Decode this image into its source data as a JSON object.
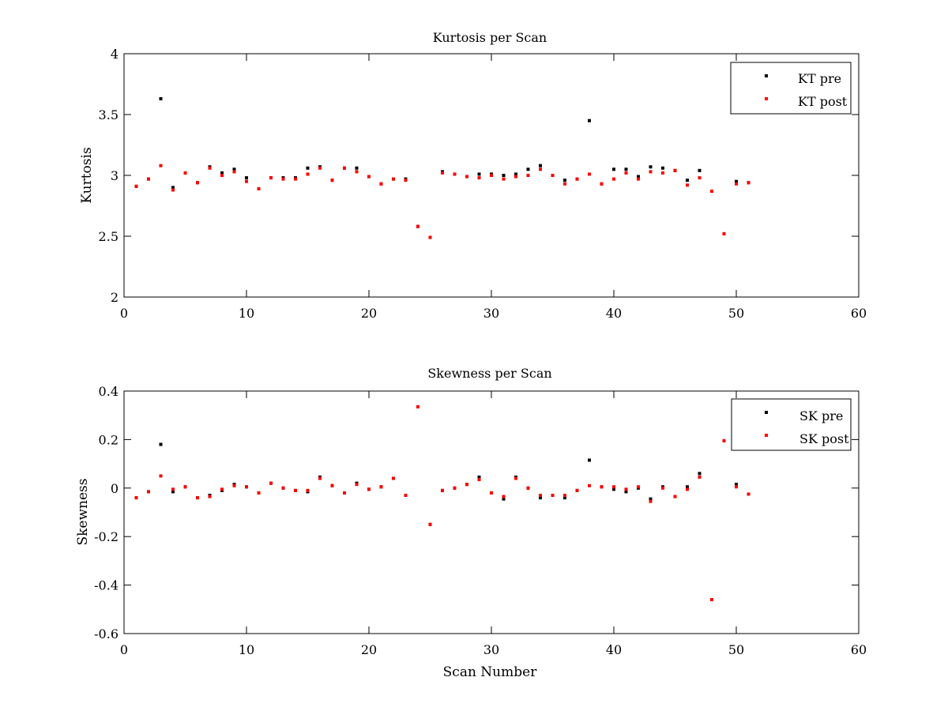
{
  "chart_data": [
    {
      "type": "scatter",
      "title": "Kurtosis per Scan",
      "xlabel": "",
      "ylabel": "Kurtosis",
      "xlim": [
        0,
        60
      ],
      "ylim": [
        2,
        4
      ],
      "xticks": [
        "0",
        "10",
        "20",
        "30",
        "40",
        "50",
        "60"
      ],
      "yticks": [
        "2",
        "2.5",
        "3",
        "3.5",
        "4"
      ],
      "xtick_values": [
        0,
        10,
        20,
        30,
        40,
        50,
        60
      ],
      "ytick_values": [
        2,
        2.5,
        3,
        3.5,
        4
      ],
      "grid": false,
      "legend_position": "top-right",
      "series": [
        {
          "name": "KT pre",
          "color": "#000000",
          "x": [
            1,
            2,
            3,
            4,
            5,
            6,
            7,
            8,
            9,
            10,
            11,
            12,
            13,
            14,
            15,
            16,
            17,
            18,
            19,
            20,
            21,
            22,
            23,
            24,
            25,
            26,
            27,
            28,
            29,
            30,
            31,
            32,
            33,
            34,
            35,
            36,
            37,
            38,
            39,
            40,
            41,
            42,
            43,
            44,
            45,
            46,
            47,
            48,
            49,
            50,
            51
          ],
          "y": [
            2.91,
            2.97,
            3.63,
            2.9,
            3.02,
            2.94,
            3.07,
            3.02,
            3.05,
            2.98,
            2.89,
            2.98,
            2.98,
            2.98,
            3.06,
            3.07,
            2.96,
            3.06,
            3.06,
            2.99,
            2.93,
            2.97,
            2.97,
            2.58,
            2.49,
            3.03,
            3.01,
            2.99,
            3.01,
            3.01,
            3.0,
            3.01,
            3.05,
            3.08,
            3.0,
            2.96,
            2.97,
            3.45,
            2.93,
            3.05,
            3.05,
            2.99,
            3.07,
            3.06,
            3.04,
            2.96,
            3.04,
            2.87,
            2.52,
            2.95,
            2.94
          ]
        },
        {
          "name": "KT post",
          "color": "#ff0000",
          "x": [
            1,
            2,
            3,
            4,
            5,
            6,
            7,
            8,
            9,
            10,
            11,
            12,
            13,
            14,
            15,
            16,
            17,
            18,
            19,
            20,
            21,
            22,
            23,
            24,
            25,
            26,
            27,
            28,
            29,
            30,
            31,
            32,
            33,
            34,
            35,
            36,
            37,
            38,
            39,
            40,
            41,
            42,
            43,
            44,
            45,
            46,
            47,
            48,
            49,
            50,
            51
          ],
          "y": [
            2.91,
            2.97,
            3.08,
            2.88,
            3.02,
            2.94,
            3.06,
            3.0,
            3.03,
            2.95,
            2.89,
            2.98,
            2.97,
            2.97,
            3.01,
            3.06,
            2.96,
            3.06,
            3.03,
            2.99,
            2.93,
            2.97,
            2.96,
            2.58,
            2.49,
            3.02,
            3.01,
            2.99,
            2.98,
            3.0,
            2.97,
            2.99,
            3.0,
            3.05,
            3.0,
            2.93,
            2.97,
            3.01,
            2.93,
            2.97,
            3.02,
            2.97,
            3.03,
            3.02,
            3.04,
            2.92,
            2.98,
            2.87,
            2.52,
            2.93,
            2.94
          ]
        }
      ]
    },
    {
      "type": "scatter",
      "title": "Skewness per Scan",
      "xlabel": "Scan Number",
      "ylabel": "Skewness",
      "xlim": [
        0,
        60
      ],
      "ylim": [
        -0.6,
        0.4
      ],
      "xticks": [
        "0",
        "10",
        "20",
        "30",
        "40",
        "50",
        "60"
      ],
      "yticks": [
        "-0.6",
        "-0.4",
        "-0.2",
        "0",
        "0.2",
        "0.4"
      ],
      "xtick_values": [
        0,
        10,
        20,
        30,
        40,
        50,
        60
      ],
      "ytick_values": [
        -0.6,
        -0.4,
        -0.2,
        0,
        0.2,
        0.4
      ],
      "grid": false,
      "legend_position": "top-right",
      "series": [
        {
          "name": "SK pre",
          "color": "#000000",
          "x": [
            1,
            2,
            3,
            4,
            5,
            6,
            7,
            8,
            9,
            10,
            11,
            12,
            13,
            14,
            15,
            16,
            17,
            18,
            19,
            20,
            21,
            22,
            23,
            24,
            25,
            26,
            27,
            28,
            29,
            30,
            31,
            32,
            33,
            34,
            35,
            36,
            37,
            38,
            39,
            40,
            41,
            42,
            43,
            44,
            45,
            46,
            47,
            48,
            49,
            50,
            51
          ],
          "y": [
            -0.04,
            -0.015,
            0.18,
            -0.015,
            0.005,
            -0.04,
            -0.03,
            -0.01,
            0.015,
            0.005,
            -0.02,
            0.02,
            0.0,
            -0.01,
            -0.015,
            0.045,
            0.01,
            -0.02,
            0.02,
            -0.005,
            0.005,
            0.04,
            -0.03,
            0.335,
            -0.15,
            -0.01,
            0.0,
            0.015,
            0.045,
            -0.02,
            -0.045,
            0.045,
            0.0,
            -0.04,
            -0.03,
            -0.04,
            -0.01,
            0.115,
            0.005,
            -0.005,
            -0.015,
            0.0,
            -0.045,
            0.005,
            -0.035,
            0.005,
            0.06,
            -0.46,
            0.195,
            0.015,
            -0.025
          ]
        },
        {
          "name": "SK post",
          "color": "#ff0000",
          "x": [
            1,
            2,
            3,
            4,
            5,
            6,
            7,
            8,
            9,
            10,
            11,
            12,
            13,
            14,
            15,
            16,
            17,
            18,
            19,
            20,
            21,
            22,
            23,
            24,
            25,
            26,
            27,
            28,
            29,
            30,
            31,
            32,
            33,
            34,
            35,
            36,
            37,
            38,
            39,
            40,
            41,
            42,
            43,
            44,
            45,
            46,
            47,
            48,
            49,
            50,
            51
          ],
          "y": [
            -0.04,
            -0.015,
            0.05,
            -0.005,
            0.005,
            -0.04,
            -0.035,
            -0.005,
            0.01,
            0.005,
            -0.02,
            0.02,
            0.0,
            -0.01,
            -0.01,
            0.04,
            0.01,
            -0.02,
            0.015,
            -0.005,
            0.005,
            0.04,
            -0.03,
            0.335,
            -0.15,
            -0.01,
            0.0,
            0.015,
            0.035,
            -0.02,
            -0.035,
            0.04,
            0.0,
            -0.03,
            -0.03,
            -0.03,
            -0.01,
            0.01,
            0.005,
            0.005,
            -0.005,
            0.005,
            -0.055,
            0.0,
            -0.035,
            -0.005,
            0.045,
            -0.46,
            0.195,
            0.005,
            -0.025
          ]
        }
      ]
    }
  ]
}
